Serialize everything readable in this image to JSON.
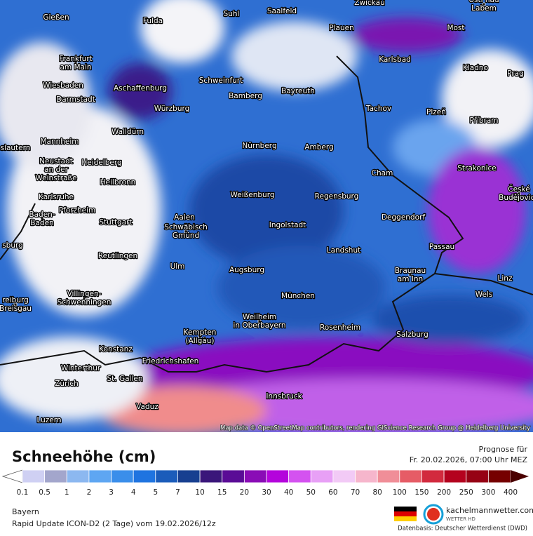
{
  "map": {
    "cities": [
      [
        "Gießen"
      ],
      [
        "Fulda"
      ],
      [
        "Suhl"
      ],
      [
        "Saalfeld"
      ],
      [
        "Zwickau"
      ],
      [
        "Ústí nad",
        "Labem"
      ],
      [
        "Plauen"
      ],
      [
        "Most"
      ],
      [
        "Frankfurt",
        "am Main"
      ],
      [
        "Wiesbaden"
      ],
      [
        "Darmstadt"
      ],
      [
        "Aschaffenburg"
      ],
      [
        "Schweinfurt"
      ],
      [
        "Karlsbad"
      ],
      [
        "Kladno"
      ],
      [
        "Prag"
      ],
      [
        "Bamberg"
      ],
      [
        "Bayreuth"
      ],
      [
        "Würzburg"
      ],
      [
        "Tachov"
      ],
      [
        "Plzeň"
      ],
      [
        "Příbram"
      ],
      [
        "Walldürn"
      ],
      [
        "slautern"
      ],
      [
        "Mannheim"
      ],
      [
        "Nürnberg"
      ],
      [
        "Amberg"
      ],
      [
        "Heidelberg"
      ],
      [
        "Neustadt",
        "an der",
        "Weinstraße"
      ],
      [
        "Heilbronn"
      ],
      [
        "Cham"
      ],
      [
        "Strakonice"
      ],
      [
        "Karlsruhe"
      ],
      [
        "Weißenburg"
      ],
      [
        "Regensburg"
      ],
      [
        "České",
        "Budějovice"
      ],
      [
        "Pforzheim"
      ],
      [
        "Baden-",
        "Baden"
      ],
      [
        "Aalen"
      ],
      [
        "Stuttgart"
      ],
      [
        "Deggendorf"
      ],
      [
        "Ingolstadt"
      ],
      [
        "Schwäbisch",
        "Gmünd"
      ],
      [
        "sburg"
      ],
      [
        "Landshut"
      ],
      [
        "Passau"
      ],
      [
        "Reutlingen"
      ],
      [
        "Ulm"
      ],
      [
        "Augsburg"
      ],
      [
        "Braunau",
        "am Inn"
      ],
      [
        "Linz"
      ],
      [
        "Villingen-",
        "Schwenningen"
      ],
      [
        "reiburg",
        "Breisgau"
      ],
      [
        "München"
      ],
      [
        "Wels"
      ],
      [
        "Weilheim",
        "in Oberbayern"
      ],
      [
        "Rosenheim"
      ],
      [
        "Kempten",
        "(Allgäu)"
      ],
      [
        "Salzburg"
      ],
      [
        "Konstanz"
      ],
      [
        "Friedrichshafen"
      ],
      [
        "Winterthur"
      ],
      [
        "St. Gallen"
      ],
      [
        "Zürich"
      ],
      [
        "Innsbruck"
      ],
      [
        "Vaduz"
      ],
      [
        "Luzern"
      ]
    ],
    "attribution": "Map data © OpenStreetMap contributors, rendering GIScience Research Group @ Heidelberg University"
  },
  "legend": {
    "title": "Schneehöhe (cm)",
    "forecast_label": "Prognose für",
    "forecast_time": "Fr. 20.02.2026, 07:00 Uhr MEZ",
    "ticks": [
      0.1,
      0.5,
      1,
      2,
      3,
      4,
      5,
      7,
      10,
      15,
      20,
      30,
      40,
      50,
      60,
      70,
      80,
      100,
      150,
      200,
      250,
      300,
      400
    ],
    "colors": [
      "#cfd0f3",
      "#a3a6cc",
      "#8cb8f0",
      "#5ea6f2",
      "#3a8eea",
      "#1f74e0",
      "#1b5cba",
      "#173f90",
      "#3a167a",
      "#5a0c96",
      "#8a0cb6",
      "#b404dc",
      "#d452f0",
      "#e8a0f6",
      "#f2caf6",
      "#f6b6cc",
      "#f08e98",
      "#e65c66",
      "#d22a3e",
      "#b4021e",
      "#960214",
      "#760000"
    ],
    "below_color": "#ffffff",
    "above_color": "#4a0000"
  },
  "footer": {
    "region": "Bayern",
    "model": "Rapid Update ICON-D2 (2 Tage) vom 19.02.2026/12z",
    "brand": "kachelmannwetter.com",
    "brand_sub": "WETTER HD",
    "source": "Datenbasis: Deutscher Wetterdienst (DWD)"
  }
}
